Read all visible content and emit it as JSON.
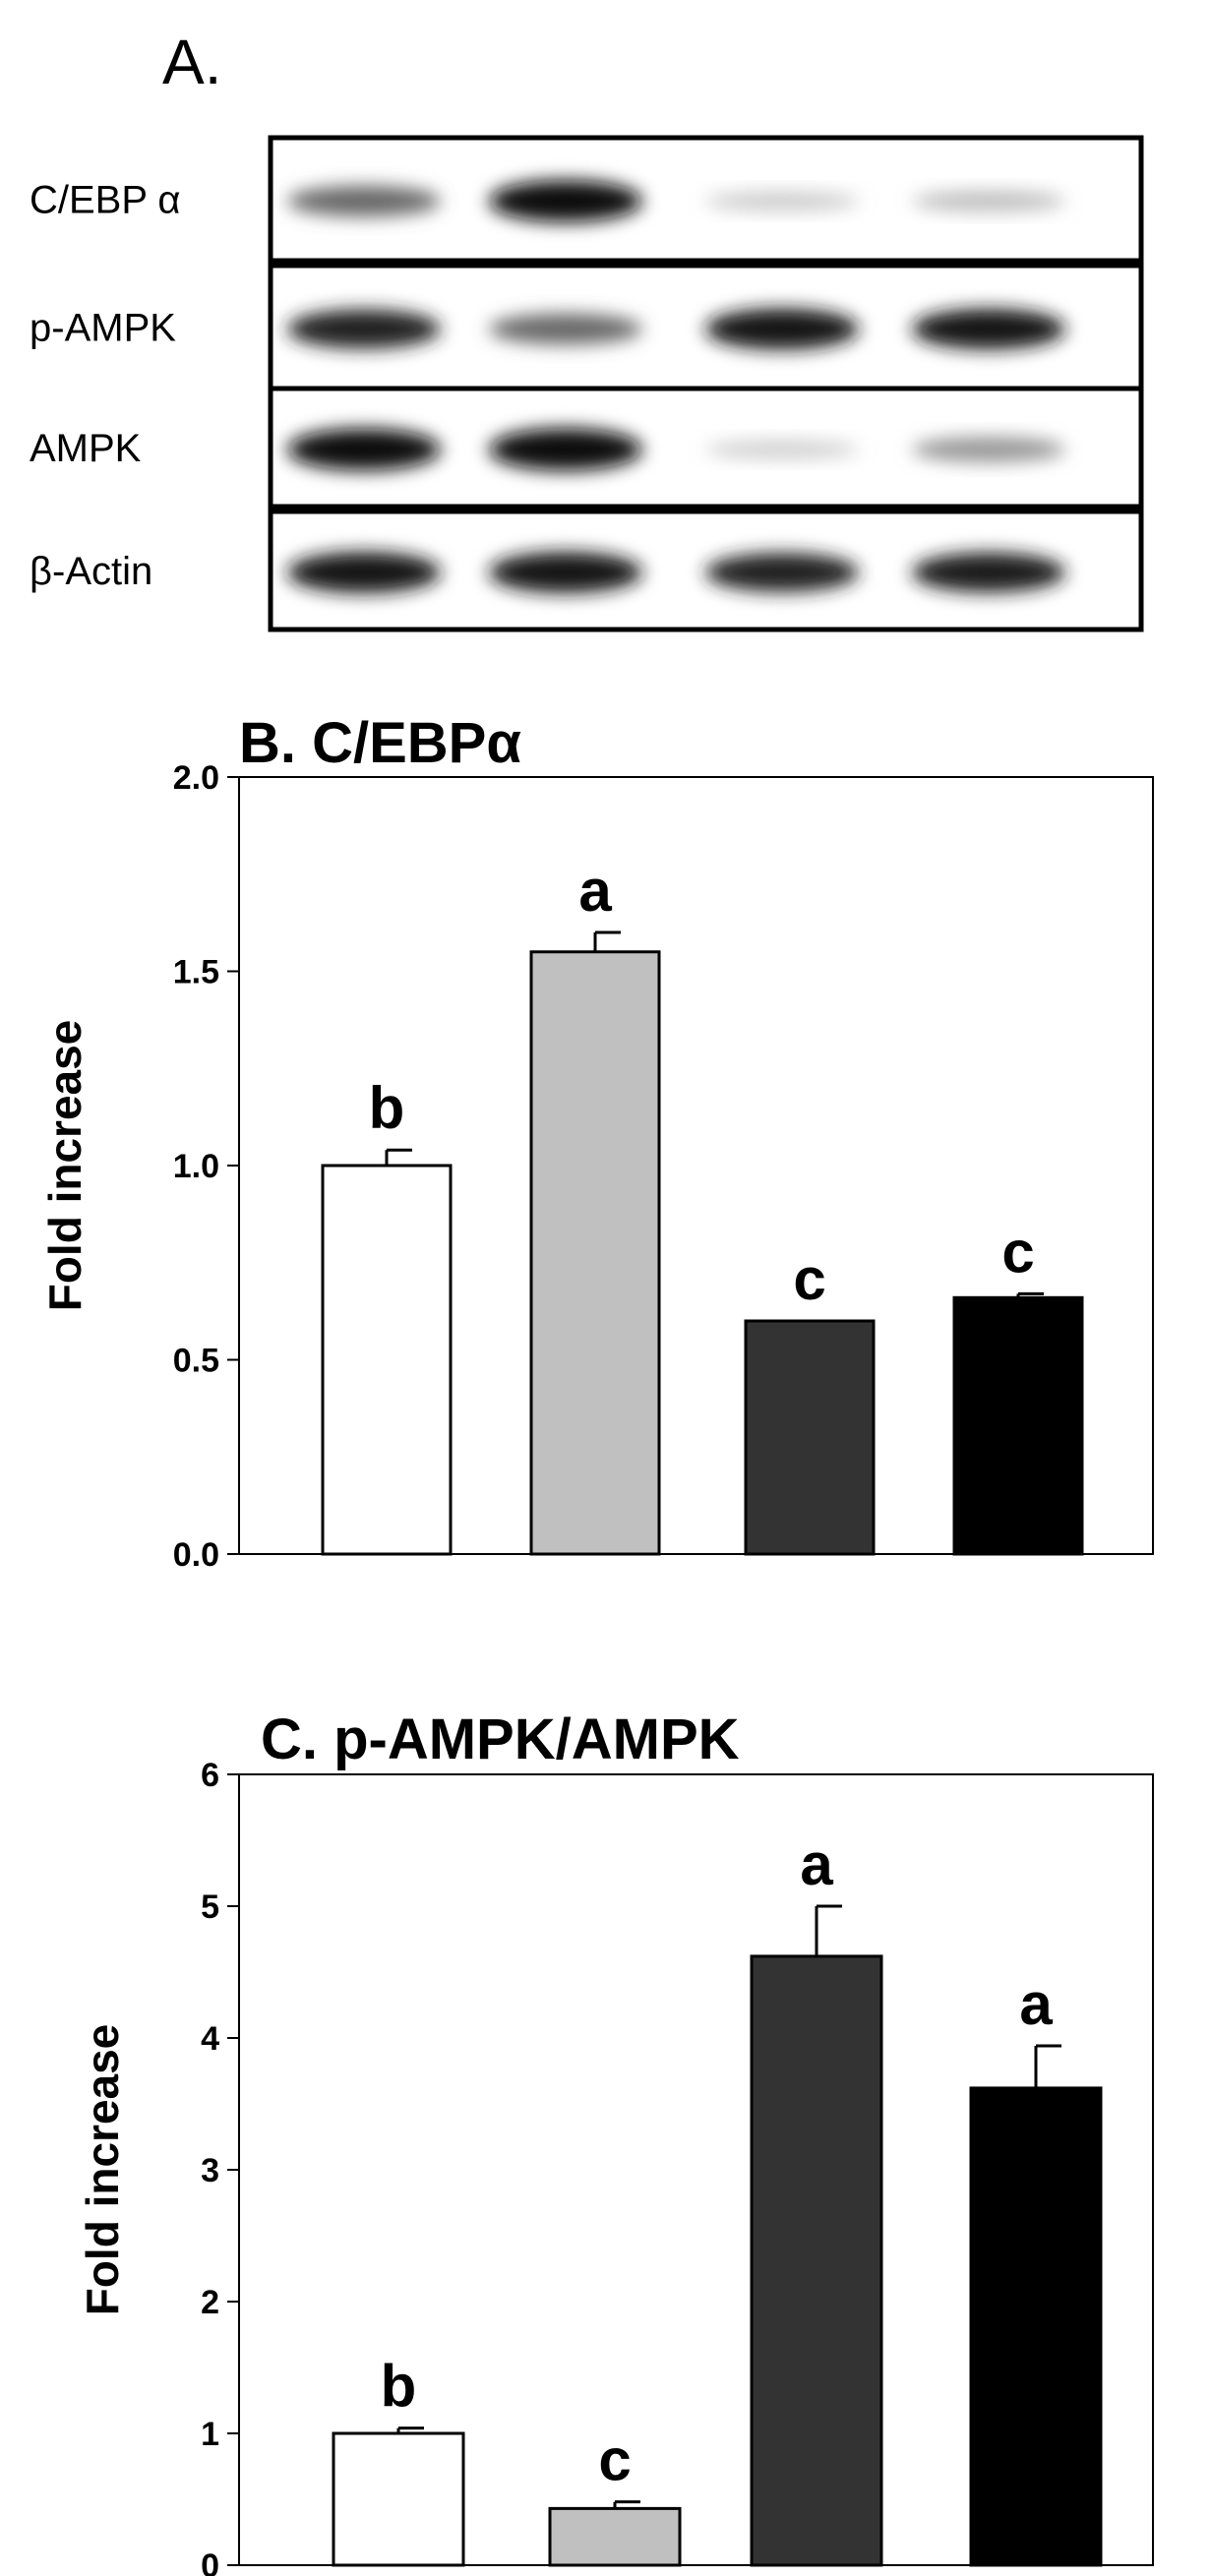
{
  "panel_a": {
    "title": "A.",
    "blots": [
      {
        "label": "C/EBP α",
        "intensity": [
          0.55,
          0.95,
          0.12,
          0.18
        ]
      },
      {
        "label": "p-AMPK",
        "intensity": [
          0.85,
          0.55,
          0.92,
          0.9
        ]
      },
      {
        "label": "AMPK",
        "intensity": [
          0.95,
          0.97,
          0.1,
          0.35
        ]
      },
      {
        "label": "β-Actin",
        "intensity": [
          0.92,
          0.92,
          0.85,
          0.88
        ]
      }
    ]
  },
  "chart_data": [
    {
      "type": "bar",
      "title": "B.  C/EBPα",
      "xlabel": "",
      "ylabel": "Fold increase",
      "ylim": [
        0,
        2.0
      ],
      "yticks": [
        "0.0",
        "0.5",
        "1.0",
        "1.5",
        "2.0"
      ],
      "yticks_values": [
        0,
        0.5,
        1.0,
        1.5,
        2.0
      ],
      "values": [
        1.0,
        1.55,
        0.6,
        0.66
      ],
      "errors": [
        0.04,
        0.05,
        0.0,
        0.01
      ],
      "letters": [
        "b",
        "a",
        "c",
        "c"
      ],
      "colors": [
        "#ffffff",
        "#c0c0c0",
        "#333333",
        "#000000"
      ],
      "grid": false
    },
    {
      "type": "bar",
      "title": "C. p-AMPK/AMPK",
      "xlabel": "",
      "ylabel": "Fold increase",
      "ylim": [
        0,
        6
      ],
      "yticks": [
        "0",
        "1",
        "2",
        "3",
        "4",
        "5",
        "6"
      ],
      "yticks_values": [
        0,
        1,
        2,
        3,
        4,
        5,
        6
      ],
      "values": [
        1.0,
        0.43,
        4.62,
        3.62
      ],
      "errors": [
        0.04,
        0.05,
        0.38,
        0.32
      ],
      "letters": [
        "b",
        "c",
        "a",
        "a"
      ],
      "colors": [
        "#ffffff",
        "#c0c0c0",
        "#333333",
        "#000000"
      ],
      "grid": false
    }
  ]
}
